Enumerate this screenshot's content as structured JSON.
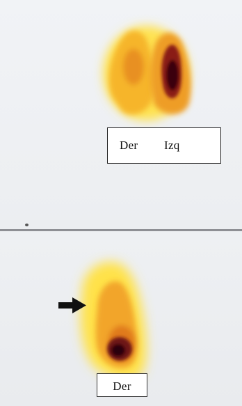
{
  "top_panel": {
    "labels": {
      "right": "Der",
      "left": "Izq"
    }
  },
  "bottom_panel": {
    "labels": {
      "right": "Der"
    }
  },
  "colors": {
    "background": "#eef0f3",
    "uptake_low": "#ffe24a",
    "uptake_mid": "#e58a1f",
    "uptake_high": "#3a0610",
    "divider": "#8e8f94"
  },
  "icons": {
    "pointer": "arrow-right-icon"
  }
}
